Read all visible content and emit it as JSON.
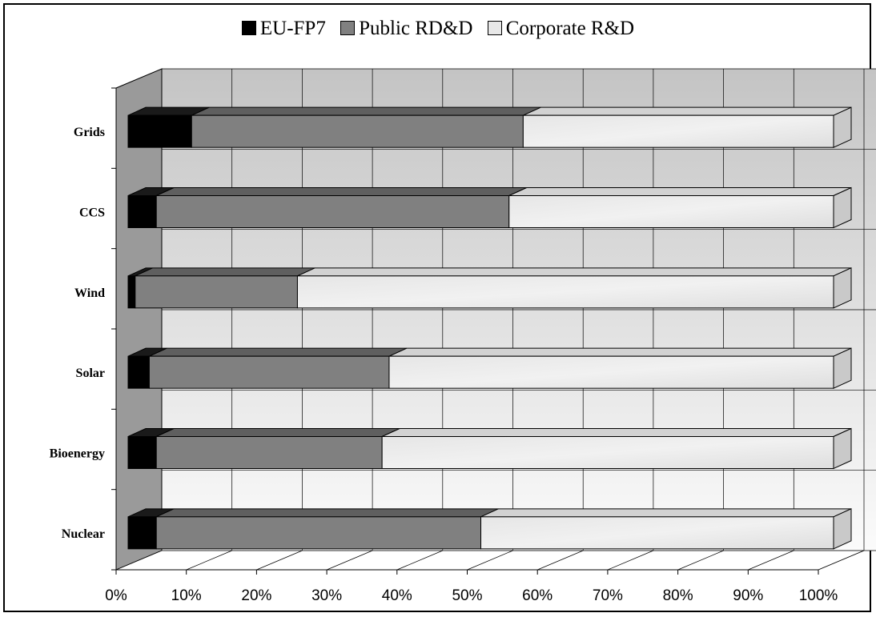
{
  "chart_data": {
    "type": "bar",
    "orientation": "horizontal",
    "stacked": "percent",
    "three_d": true,
    "categories": [
      "Grids",
      "CCS",
      "Wind",
      "Solar",
      "Bioenergy",
      "Nuclear"
    ],
    "series": [
      {
        "name": "EU-FP7",
        "values": [
          9,
          4,
          1,
          3,
          4,
          4
        ],
        "color": "#000000"
      },
      {
        "name": "Public RD&D",
        "values": [
          47,
          50,
          23,
          34,
          32,
          46
        ],
        "color": "#808080"
      },
      {
        "name": "Corporate R&D",
        "values": [
          44,
          46,
          76,
          63,
          64,
          50
        ],
        "color": "#e4e4e4"
      }
    ],
    "x_tick_labels": [
      "0%",
      "10%",
      "20%",
      "30%",
      "40%",
      "50%",
      "60%",
      "70%",
      "80%",
      "90%",
      "100%"
    ],
    "xlim": [
      0,
      100
    ],
    "grid": true,
    "legend_position": "top"
  }
}
